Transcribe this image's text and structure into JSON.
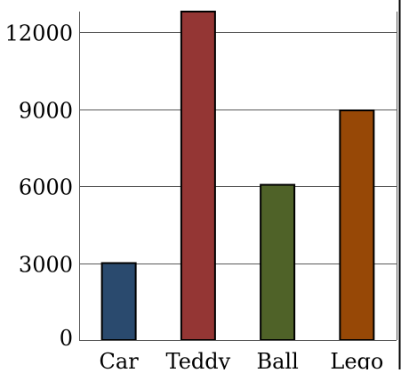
{
  "chart_data": {
    "type": "bar",
    "title": "",
    "xlabel": "",
    "ylabel": "",
    "categories": [
      "Car",
      "Teddy",
      "Ball",
      "Lego"
    ],
    "values": [
      3000,
      12800,
      6050,
      8950
    ],
    "bar_colors": [
      "#2a4a6e",
      "#943634",
      "#4f6228",
      "#974806"
    ],
    "ylim": [
      0,
      12800
    ],
    "yticks": [
      0,
      3000,
      6000,
      9000,
      12000
    ],
    "ytick_labels": [
      "0",
      "3000",
      "6000",
      "9000",
      "12000"
    ],
    "grid": "horizontal",
    "legend": "none"
  }
}
